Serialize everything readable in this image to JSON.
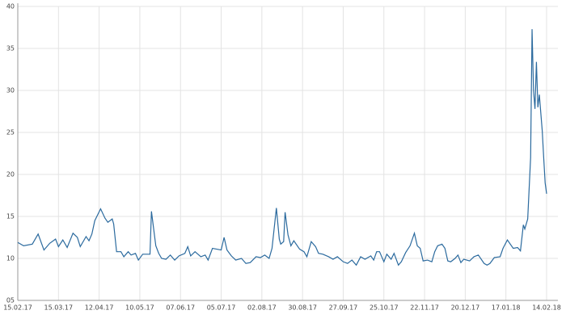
{
  "chart_data": {
    "type": "line",
    "x": [
      "15.02.17",
      "19.02.17",
      "25.02.17",
      "01.03.17",
      "05.03.17",
      "09.03.17",
      "13.03.17",
      "15.03.17",
      "18.03.17",
      "21.03.17",
      "25.03.17",
      "28.03.17",
      "30.03.17",
      "03.04.17",
      "05.04.17",
      "07.04.17",
      "09.04.17",
      "13.04.17",
      "16.04.17",
      "18.04.17",
      "21.04.17",
      "22.04.17",
      "24.04.17",
      "27.04.17",
      "29.04.17",
      "02.05.17",
      "04.05.17",
      "07.05.17",
      "09.05.17",
      "12.05.17",
      "16.05.17",
      "17.05.17",
      "18.05.17",
      "21.05.17",
      "23.05.17",
      "25.05.17",
      "28.05.17",
      "31.05.17",
      "03.06.17",
      "06.06.17",
      "10.06.17",
      "12.06.17",
      "14.06.17",
      "17.06.17",
      "21.06.17",
      "24.06.17",
      "26.06.17",
      "29.06.17",
      "02.07.17",
      "05.07.17",
      "07.07.17",
      "09.07.17",
      "12.07.17",
      "15.07.17",
      "19.07.17",
      "22.07.17",
      "25.07.17",
      "29.07.17",
      "01.08.17",
      "04.08.17",
      "07.08.17",
      "09.08.17",
      "12.08.17",
      "14.08.17",
      "15.08.17",
      "17.08.17",
      "18.08.17",
      "20.08.17",
      "22.08.17",
      "24.08.17",
      "28.08.17",
      "31.08.17",
      "02.09.17",
      "05.09.17",
      "08.09.17",
      "10.09.17",
      "13.09.17",
      "17.09.17",
      "20.09.17",
      "23.09.17",
      "27.09.17",
      "30.09.17",
      "03.10.17",
      "06.10.17",
      "09.10.17",
      "12.10.17",
      "16.10.17",
      "18.10.17",
      "20.10.17",
      "22.10.17",
      "25.10.17",
      "27.10.17",
      "30.10.17",
      "01.11.17",
      "04.11.17",
      "06.11.17",
      "09.11.17",
      "12.11.17",
      "15.11.17",
      "17.11.17",
      "19.11.17",
      "21.11.17",
      "24.11.17",
      "27.11.17",
      "29.11.17",
      "01.12.17",
      "04.12.17",
      "06.12.17",
      "08.12.17",
      "10.12.17",
      "13.12.17",
      "15.12.17",
      "17.12.17",
      "19.12.17",
      "23.12.17",
      "26.12.17",
      "29.12.17",
      "02.01.18",
      "04.01.18",
      "06.01.18",
      "09.01.18",
      "13.01.18",
      "15.01.18",
      "18.01.18",
      "22.01.18",
      "25.01.18",
      "27.01.18",
      "29.01.18",
      "30.01.18",
      "01.02.18",
      "03.02.18",
      "04.02.18",
      "05.02.18",
      "06.02.18",
      "07.02.18",
      "08.02.18",
      "09.02.18",
      "11.02.18",
      "12.02.18",
      "13.02.18",
      "14.02.18"
    ],
    "series": [
      {
        "color": "#2b6a9e",
        "values": [
          11.9,
          11.5,
          11.7,
          12.9,
          11.0,
          11.8,
          12.3,
          11.4,
          12.2,
          11.3,
          13.0,
          12.5,
          11.4,
          12.6,
          12.1,
          12.9,
          14.5,
          15.9,
          14.8,
          14.3,
          14.7,
          14.1,
          10.8,
          10.8,
          10.2,
          10.8,
          10.4,
          10.6,
          9.8,
          10.5,
          10.5,
          10.5,
          15.6,
          11.5,
          10.6,
          10.0,
          9.9,
          10.4,
          9.8,
          10.3,
          10.6,
          11.4,
          10.3,
          10.8,
          10.2,
          10.4,
          9.8,
          11.2,
          11.1,
          11.0,
          12.5,
          11.0,
          10.3,
          9.8,
          10.0,
          9.4,
          9.5,
          10.2,
          10.1,
          10.4,
          10.0,
          11.2,
          16.0,
          12.3,
          11.7,
          12.0,
          15.5,
          12.8,
          11.5,
          12.1,
          11.1,
          10.8,
          10.2,
          12.0,
          11.4,
          10.6,
          10.5,
          10.2,
          9.9,
          10.2,
          9.6,
          9.4,
          9.8,
          9.2,
          10.2,
          9.9,
          10.3,
          9.8,
          10.8,
          10.8,
          9.6,
          10.5,
          9.9,
          10.6,
          9.2,
          9.6,
          10.7,
          11.5,
          13.0,
          11.5,
          11.2,
          9.7,
          9.8,
          9.6,
          10.8,
          11.5,
          11.7,
          11.2,
          9.7,
          9.6,
          10.0,
          10.4,
          9.5,
          9.9,
          9.7,
          10.2,
          10.4,
          9.4,
          9.2,
          9.4,
          10.1,
          10.2,
          11.2,
          12.2,
          11.2,
          11.3,
          10.9,
          14.0,
          13.5,
          14.7,
          22.0,
          37.3,
          30.0,
          27.8,
          33.4,
          28.0,
          29.5,
          25.2,
          22.0,
          19.0,
          17.7
        ]
      }
    ],
    "xlim": [
      "15.02.17",
      "14.02.18"
    ],
    "xticks": [
      "15.02.17",
      "15.03.17",
      "12.04.17",
      "10.05.17",
      "07.06.17",
      "05.07.17",
      "02.08.17",
      "30.08.17",
      "27.09.17",
      "25.10.17",
      "22.11.17",
      "20.12.17",
      "17.01.18",
      "14.02.18"
    ],
    "ylim": [
      5,
      40
    ],
    "yticks": [
      {
        "value": 5,
        "label": "05"
      },
      10,
      15,
      20,
      25,
      30,
      35,
      40
    ],
    "grid": true
  }
}
